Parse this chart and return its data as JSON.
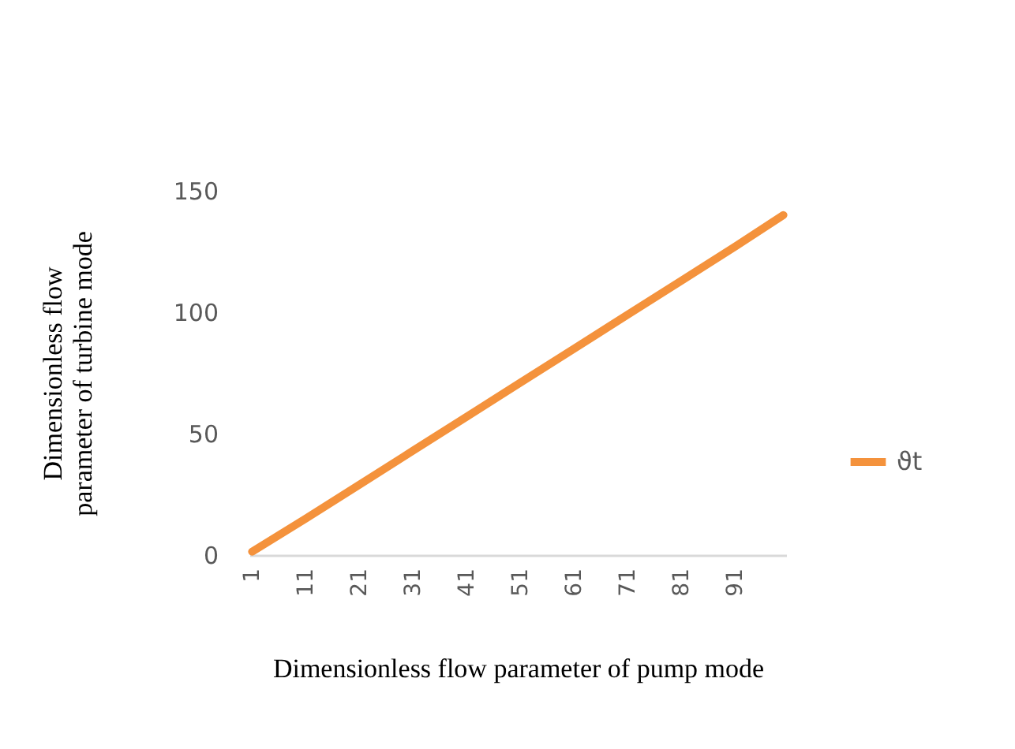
{
  "chart_data": {
    "type": "line",
    "xlabel": "Dimensionless flow parameter of pump mode",
    "ylabel": "Dimensionless flow parameter of turbine mode",
    "x": [
      1,
      11,
      21,
      31,
      41,
      51,
      61,
      71,
      81,
      91,
      100
    ],
    "series": [
      {
        "name": "ϑt",
        "color": "#f4923c",
        "values": [
          1.4,
          15,
          29,
          43,
          57,
          71,
          85,
          99,
          113,
          127,
          140
        ]
      }
    ],
    "xlim": [
      0.5,
      100.5
    ],
    "xticks": [
      1,
      11,
      21,
      31,
      41,
      51,
      61,
      71,
      81,
      91
    ],
    "ylim": [
      0,
      150
    ],
    "yticks": [
      0,
      50,
      100,
      150
    ],
    "grid": false,
    "legend": "right",
    "marker": "none",
    "line_style": "solid"
  }
}
